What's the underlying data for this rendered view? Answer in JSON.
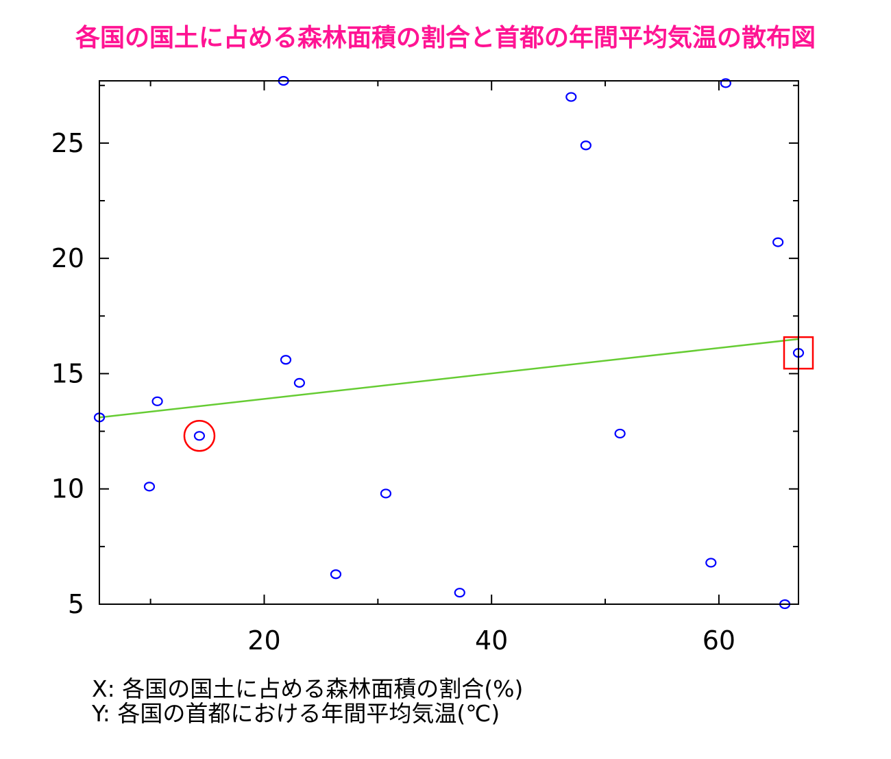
{
  "chart_data": {
    "type": "scatter",
    "title": "各国の国土に占める森林面積の割合と首都の年間平均気温の散布図",
    "xlabel": "X: 各国の国土に占める森林面積の割合(%)",
    "ylabel": "Y: 各国の首都における年間平均気温(℃)",
    "xlim": [
      5.5,
      67
    ],
    "ylim": [
      5,
      27.7
    ],
    "x_ticks": [
      20,
      40,
      60
    ],
    "y_ticks": [
      5,
      10,
      15,
      20,
      25
    ],
    "grid": false,
    "points": [
      {
        "x": 5.5,
        "y": 13.1
      },
      {
        "x": 9.9,
        "y": 10.1
      },
      {
        "x": 10.6,
        "y": 13.8
      },
      {
        "x": 14.3,
        "y": 12.3
      },
      {
        "x": 21.7,
        "y": 27.7
      },
      {
        "x": 21.9,
        "y": 15.6
      },
      {
        "x": 23.1,
        "y": 14.6
      },
      {
        "x": 26.3,
        "y": 6.3
      },
      {
        "x": 30.7,
        "y": 9.8
      },
      {
        "x": 37.2,
        "y": 5.5
      },
      {
        "x": 47.0,
        "y": 27.0
      },
      {
        "x": 48.3,
        "y": 24.9
      },
      {
        "x": 51.3,
        "y": 12.4
      },
      {
        "x": 59.3,
        "y": 6.8
      },
      {
        "x": 60.6,
        "y": 27.6
      },
      {
        "x": 65.2,
        "y": 20.7
      },
      {
        "x": 65.8,
        "y": 5.0
      },
      {
        "x": 67.0,
        "y": 15.9
      }
    ],
    "regression_line": {
      "x": [
        5.5,
        67
      ],
      "y": [
        13.1,
        16.5
      ],
      "color": "#66cc33"
    },
    "highlights": [
      {
        "shape": "circle",
        "x": 14.3,
        "y": 12.3,
        "color": "#ff0000"
      },
      {
        "shape": "square",
        "x": 67.0,
        "y": 15.9,
        "color": "#ff0000"
      }
    ],
    "point_color": "#0000ff"
  }
}
